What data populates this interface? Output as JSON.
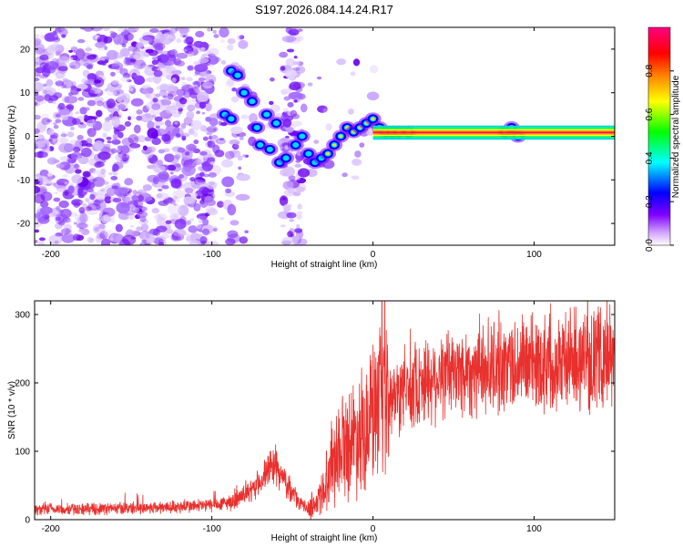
{
  "title": "S197.2026.084.14.24.R17",
  "chart_data": [
    {
      "type": "heatmap",
      "name": "spectrogram",
      "xlabel": "Height of straight line (km)",
      "ylabel": "Frequency (Hz)",
      "xlim": [
        -210,
        150
      ],
      "ylim": [
        -25,
        25
      ],
      "xticks": [
        -200,
        -100,
        0,
        100
      ],
      "yticks": [
        -20,
        -10,
        0,
        10,
        20
      ],
      "colorbar": {
        "label": "Normalized spectral amplitude",
        "range": [
          0,
          1
        ],
        "ticks": [
          0.0,
          0.2,
          0.4,
          0.6,
          0.8
        ],
        "tick_labels": [
          "0.0",
          "0.2",
          "0.4",
          "0.6",
          "0.8"
        ],
        "colors": [
          "#ffffff",
          "#7f00ff",
          "#0000ff",
          "#00ffff",
          "#00ff00",
          "#ffff00",
          "#ff8000",
          "#ff0000",
          "#ff0080"
        ]
      },
      "carrier": {
        "frequency": 1,
        "x_start": 0,
        "x_end": 150
      },
      "bright_track": [
        {
          "x": -88,
          "y": 15
        },
        {
          "x": -84,
          "y": 14
        },
        {
          "x": -80,
          "y": 10
        },
        {
          "x": -75,
          "y": 8
        },
        {
          "x": -92,
          "y": 5
        },
        {
          "x": -88,
          "y": 4
        },
        {
          "x": -72,
          "y": 2
        },
        {
          "x": -66,
          "y": 5
        },
        {
          "x": -60,
          "y": 3
        },
        {
          "x": -70,
          "y": -2
        },
        {
          "x": -64,
          "y": -3
        },
        {
          "x": -58,
          "y": -6
        },
        {
          "x": -54,
          "y": -5
        },
        {
          "x": -48,
          "y": -2
        },
        {
          "x": -44,
          "y": 0
        },
        {
          "x": -40,
          "y": -4
        },
        {
          "x": -36,
          "y": -6
        },
        {
          "x": -32,
          "y": -5
        },
        {
          "x": -28,
          "y": -4
        },
        {
          "x": -24,
          "y": -2
        },
        {
          "x": -20,
          "y": 0
        },
        {
          "x": -16,
          "y": 2
        },
        {
          "x": -12,
          "y": 1
        },
        {
          "x": -8,
          "y": 2
        },
        {
          "x": -4,
          "y": 3
        },
        {
          "x": 0,
          "y": 4
        },
        {
          "x": 4,
          "y": 2
        },
        {
          "x": 8,
          "y": 1
        },
        {
          "x": 12,
          "y": 1
        },
        {
          "x": 16,
          "y": 1
        },
        {
          "x": 22,
          "y": 1
        },
        {
          "x": 82,
          "y": 1
        },
        {
          "x": 86,
          "y": 2
        },
        {
          "x": 90,
          "y": 0
        }
      ]
    },
    {
      "type": "line",
      "name": "snr",
      "xlabel": "Height of straight line (km)",
      "ylabel": "SNR (10 * v/v)",
      "xlim": [
        -210,
        150
      ],
      "ylim": [
        0,
        320
      ],
      "xticks": [
        -200,
        -100,
        0,
        100
      ],
      "yticks": [
        0,
        100,
        200,
        300
      ],
      "color": "#e8302d",
      "series": [
        {
          "name": "SNR",
          "x": [
            -210,
            -190,
            -170,
            -150,
            -130,
            -110,
            -95,
            -85,
            -75,
            -68,
            -62,
            -56,
            -50,
            -44,
            -40,
            -35,
            -30,
            -25,
            -20,
            -15,
            -10,
            -5,
            0,
            5,
            10,
            15,
            20,
            30,
            40,
            50,
            60,
            70,
            80,
            90,
            100,
            110,
            120,
            130,
            140,
            150
          ],
          "values": [
            15,
            15,
            16,
            17,
            18,
            20,
            22,
            28,
            42,
            62,
            82,
            60,
            40,
            20,
            18,
            24,
            50,
            90,
            110,
            115,
            125,
            140,
            155,
            163,
            170,
            180,
            190,
            203,
            210,
            215,
            218,
            222,
            225,
            228,
            230,
            232,
            233,
            235,
            237,
            240
          ]
        }
      ]
    }
  ]
}
